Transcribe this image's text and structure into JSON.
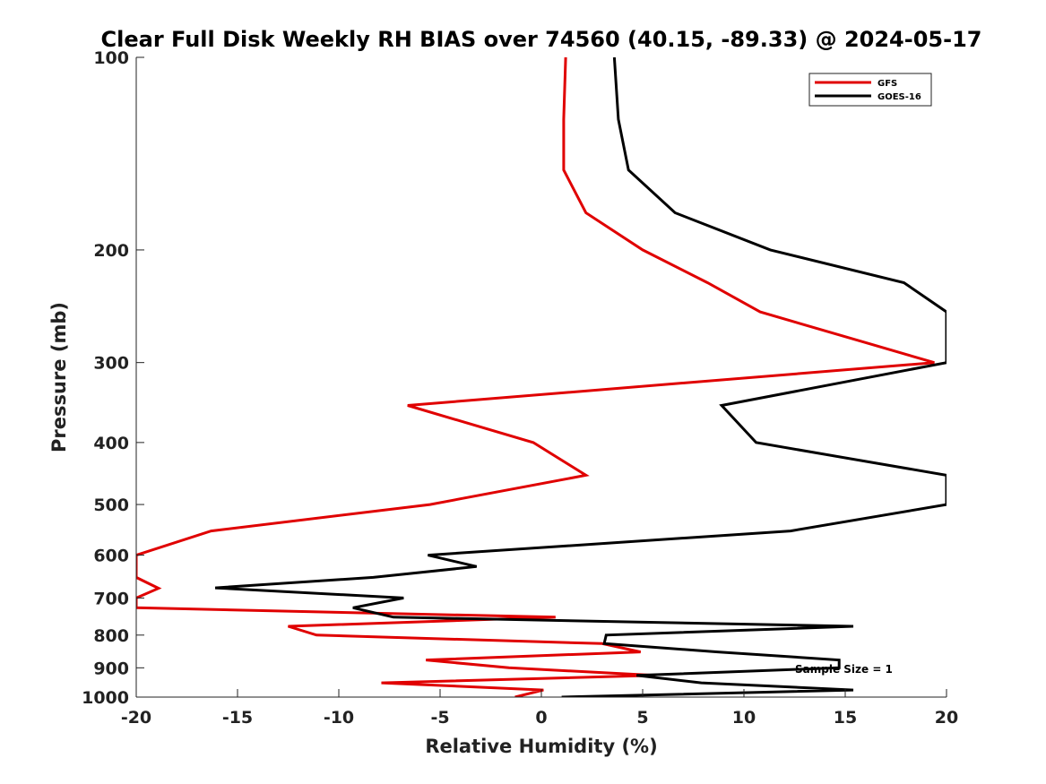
{
  "chart_data": {
    "type": "line",
    "title": "Clear Full Disk Weekly RH BIAS over 74560 (40.15, -89.33) @ 2024-05-17",
    "xlabel": "Relative Humidity (%)",
    "ylabel": "Pressure (mb)",
    "xlim": [
      -20,
      20
    ],
    "ylim": [
      100,
      1000
    ],
    "y_scale": "log",
    "y_reversed": true,
    "x_ticks": [
      "-20",
      "-15",
      "-10",
      "-5",
      "0",
      "5",
      "10",
      "15",
      "20"
    ],
    "y_ticks": [
      "100",
      "200",
      "300",
      "400",
      "500",
      "600",
      "700",
      "800",
      "900",
      "1000"
    ],
    "grid": false,
    "legend_position": "top-right",
    "annotation": "Sample Size = 1",
    "series": [
      {
        "name": "GFS",
        "color": "#e00000",
        "points": [
          [
            1.2,
            100
          ],
          [
            1.1,
            125
          ],
          [
            1.1,
            150
          ],
          [
            2.2,
            175
          ],
          [
            5,
            200
          ],
          [
            8.2,
            225
          ],
          [
            10.8,
            250
          ],
          [
            19.4,
            300
          ],
          [
            -6.6,
            350
          ],
          [
            -0.4,
            400
          ],
          [
            2.2,
            450
          ],
          [
            -5.5,
            500
          ],
          [
            -16.3,
            550
          ],
          [
            -20,
            600
          ],
          [
            -20,
            650
          ],
          [
            -18.9,
            676
          ],
          [
            -20,
            700
          ],
          [
            -20,
            725
          ],
          [
            0.7,
            750
          ],
          [
            -12.5,
            775
          ],
          [
            -11.1,
            800
          ],
          [
            3,
            825
          ],
          [
            4.9,
            850
          ],
          [
            -5.7,
            875
          ],
          [
            -1.6,
            900
          ],
          [
            5.6,
            925
          ],
          [
            -7.9,
            950
          ],
          [
            0.1,
            975
          ],
          [
            -1.3,
            1000
          ]
        ]
      },
      {
        "name": "GOES-16",
        "color": "#000000",
        "points": [
          [
            3.6,
            100
          ],
          [
            3.8,
            125
          ],
          [
            4.3,
            150
          ],
          [
            6.6,
            175
          ],
          [
            11.3,
            200
          ],
          [
            17.9,
            225
          ],
          [
            20,
            250
          ],
          [
            20,
            300
          ],
          [
            8.9,
            350
          ],
          [
            10.6,
            400
          ],
          [
            20,
            450
          ],
          [
            20,
            500
          ],
          [
            12.3,
            550
          ],
          [
            -5.6,
            600
          ],
          [
            -3.2,
            625
          ],
          [
            -8.3,
            650
          ],
          [
            -16.1,
            675
          ],
          [
            -6.8,
            700
          ],
          [
            -9.3,
            725
          ],
          [
            -7.3,
            750
          ],
          [
            15.4,
            775
          ],
          [
            3.2,
            800
          ],
          [
            3.1,
            825
          ],
          [
            8.7,
            850
          ],
          [
            14.7,
            875
          ],
          [
            14.7,
            900
          ],
          [
            4.7,
            925
          ],
          [
            7.9,
            950
          ],
          [
            15.4,
            975
          ],
          [
            1,
            1000
          ]
        ]
      }
    ]
  }
}
